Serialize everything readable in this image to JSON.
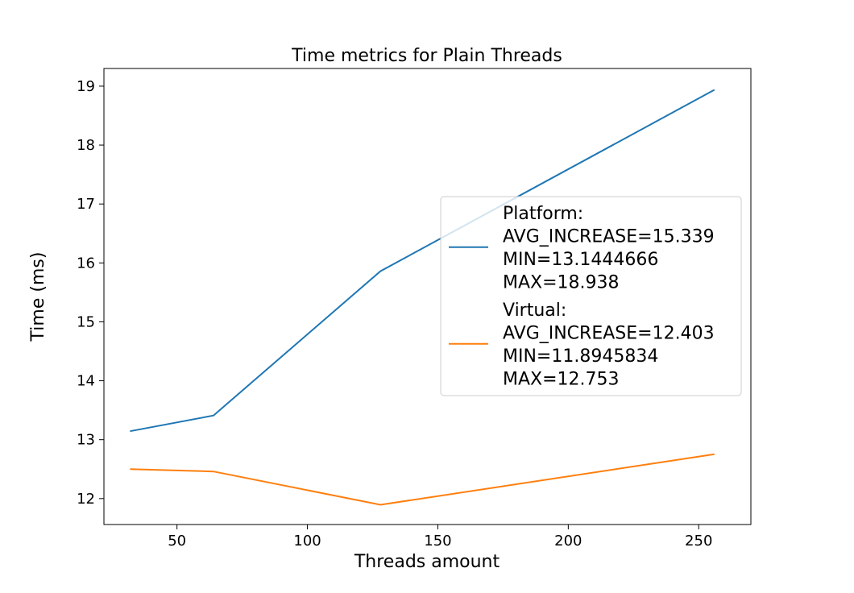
{
  "chart_data": {
    "type": "line",
    "title": "Time metrics for Plain Threads",
    "xlabel": "Threads amount",
    "ylabel": "Time (ms)",
    "xlim": [
      22,
      270
    ],
    "ylim": [
      11.56,
      19.3
    ],
    "xticks": [
      50,
      100,
      150,
      200,
      250
    ],
    "yticks": [
      12,
      13,
      14,
      15,
      16,
      17,
      18,
      19
    ],
    "grid": false,
    "legend_position": "center-right",
    "series": [
      {
        "name": "Platform:\nAVG_INCREASE=15.339\nMIN=13.1444666\nMAX=18.938",
        "legend_lines": [
          "Platform:",
          "AVG_INCREASE=15.339",
          "MIN=13.1444666",
          "MAX=18.938"
        ],
        "color": "#1f77b4",
        "x": [
          32,
          64,
          128,
          256
        ],
        "y": [
          13.144,
          13.41,
          15.86,
          18.938
        ]
      },
      {
        "name": "Virtual:\nAVG_INCREASE=12.403\nMIN=11.8945834\nMAX=12.753",
        "legend_lines": [
          "Virtual:",
          "AVG_INCREASE=12.403",
          "MIN=11.8945834",
          "MAX=12.753"
        ],
        "color": "#ff7f0e",
        "x": [
          32,
          64,
          128,
          256
        ],
        "y": [
          12.5,
          12.46,
          11.895,
          12.753
        ]
      }
    ]
  }
}
